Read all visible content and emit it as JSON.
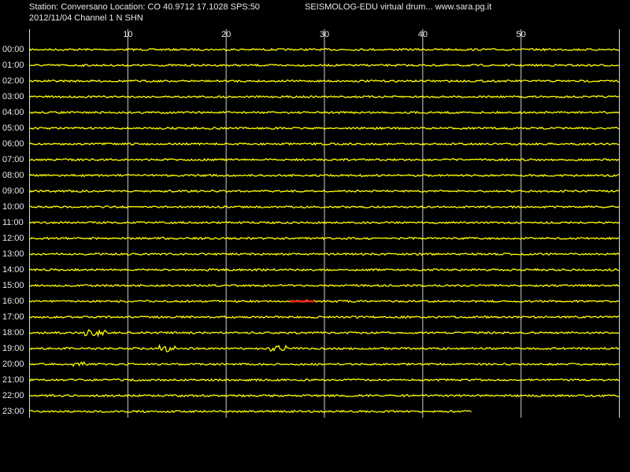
{
  "header": {
    "station": "Station: Conversano Location: CO 40.9712 17.1028 SPS:50",
    "program": "SEISMOLOG-EDU virtual drum... www.sara.pg.it",
    "date_channel": "2012/11/04  Channel 1 N SHN"
  },
  "axis": {
    "xlim": [
      0,
      60
    ],
    "xticks": [
      10,
      20,
      30,
      40,
      50
    ]
  },
  "rows": [
    "00:00",
    "01:00",
    "02:00",
    "03:00",
    "04:00",
    "05:00",
    "06:00",
    "07:00",
    "08:00",
    "09:00",
    "10:00",
    "11:00",
    "12:00",
    "13:00",
    "14:00",
    "15:00",
    "16:00",
    "17:00",
    "18:00",
    "19:00",
    "20:00",
    "21:00",
    "22:00",
    "23:00"
  ],
  "last_row_end": 45
}
